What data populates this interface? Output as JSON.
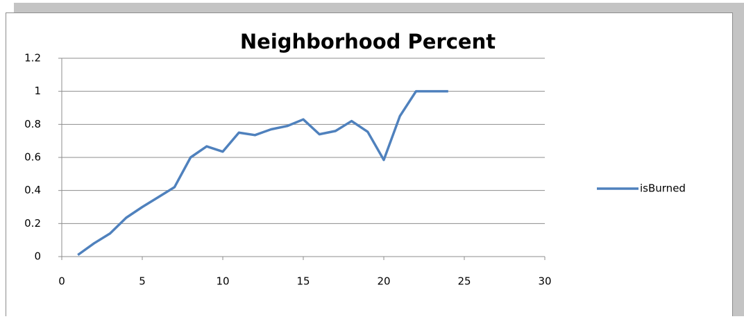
{
  "chart_data": {
    "type": "line",
    "title": "Neighborhood Percent",
    "x": [
      1,
      2,
      3,
      4,
      5,
      6,
      7,
      8,
      9,
      10,
      11,
      12,
      13,
      14,
      15,
      16,
      17,
      18,
      19,
      20,
      21,
      22,
      23,
      24
    ],
    "series": [
      {
        "name": "isBurned",
        "color": "#4f81bd",
        "values": [
          0.01,
          0.08,
          0.14,
          0.235,
          0.3,
          0.36,
          0.42,
          0.6,
          0.667,
          0.635,
          0.75,
          0.735,
          0.77,
          0.79,
          0.83,
          0.74,
          0.76,
          0.82,
          0.755,
          0.585,
          0.85,
          1,
          1,
          1
        ]
      }
    ],
    "xlim": [
      0,
      30
    ],
    "xticks": [
      0,
      5,
      10,
      15,
      20,
      25,
      30
    ],
    "ylim": [
      0,
      1.2
    ],
    "yticks": [
      0,
      0.2,
      0.4,
      0.6,
      0.8,
      1,
      1.2
    ],
    "grid": true,
    "legend": "right"
  }
}
